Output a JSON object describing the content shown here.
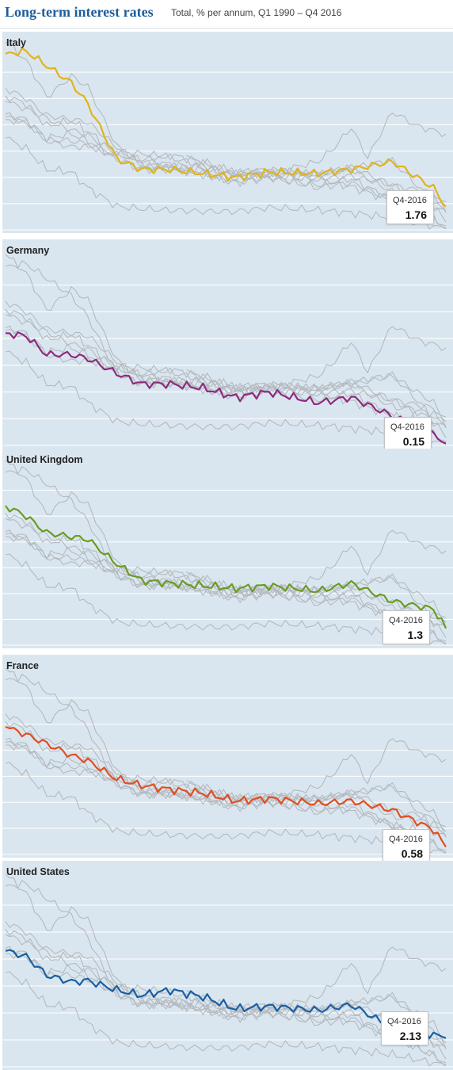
{
  "header": {
    "title": "Long-term interest rates",
    "subtitle": "Total, % per annum, Q1 1990 – Q4 2016"
  },
  "chart_data": {
    "type": "line",
    "title": "Long-term interest rates",
    "subtitle": "Total, % per annum, Q1 1990 – Q4 2016",
    "x_range": [
      "Q1-1990",
      "Q4-2016"
    ],
    "period_count": 108,
    "countries": [
      "Italy",
      "Germany",
      "United Kingdom",
      "France",
      "United States"
    ],
    "colors": {
      "Italy": "#e0b31e",
      "Germany": "#8e2a7e",
      "United Kingdom": "#6b9b24",
      "France": "#e04f22",
      "United States": "#1a5fa3",
      "context": "#b4b9bf"
    },
    "series_keypoints": {
      "Italy": [
        [
          0,
          13.4
        ],
        [
          5,
          13.6
        ],
        [
          10,
          12.5
        ],
        [
          16,
          11.2
        ],
        [
          20,
          9.6
        ],
        [
          27,
          5.4
        ],
        [
          33,
          4.6
        ],
        [
          40,
          4.6
        ],
        [
          48,
          4.3
        ],
        [
          56,
          4.0
        ],
        [
          64,
          4.4
        ],
        [
          76,
          4.3
        ],
        [
          84,
          4.6
        ],
        [
          94,
          5.2
        ],
        [
          104,
          3.2
        ],
        [
          107,
          1.76
        ]
      ],
      "Germany": [
        [
          0,
          8.4
        ],
        [
          5,
          8.2
        ],
        [
          10,
          6.8
        ],
        [
          16,
          6.8
        ],
        [
          20,
          6.5
        ],
        [
          27,
          5.4
        ],
        [
          33,
          4.6
        ],
        [
          40,
          4.6
        ],
        [
          48,
          4.3
        ],
        [
          56,
          3.6
        ],
        [
          64,
          4.0
        ],
        [
          76,
          3.2
        ],
        [
          84,
          3.6
        ],
        [
          94,
          2.2
        ],
        [
          104,
          0.9
        ],
        [
          107,
          0.15
        ]
      ],
      "United Kingdom": [
        [
          0,
          10.8
        ],
        [
          5,
          10.0
        ],
        [
          10,
          8.7
        ],
        [
          16,
          8.4
        ],
        [
          20,
          8.2
        ],
        [
          27,
          6.3
        ],
        [
          33,
          5.0
        ],
        [
          40,
          4.8
        ],
        [
          48,
          4.6
        ],
        [
          56,
          4.4
        ],
        [
          64,
          4.6
        ],
        [
          76,
          4.2
        ],
        [
          84,
          4.8
        ],
        [
          94,
          3.4
        ],
        [
          104,
          2.8
        ],
        [
          107,
          1.3
        ]
      ],
      "France": [
        [
          0,
          9.8
        ],
        [
          5,
          9.2
        ],
        [
          10,
          8.5
        ],
        [
          16,
          7.6
        ],
        [
          20,
          7.2
        ],
        [
          27,
          5.8
        ],
        [
          33,
          5.3
        ],
        [
          40,
          5.0
        ],
        [
          48,
          4.7
        ],
        [
          56,
          4.1
        ],
        [
          64,
          4.3
        ],
        [
          76,
          3.9
        ],
        [
          84,
          4.1
        ],
        [
          94,
          3.4
        ],
        [
          104,
          1.9
        ],
        [
          107,
          0.58
        ]
      ],
      "United States": [
        [
          0,
          8.6
        ],
        [
          5,
          8.2
        ],
        [
          10,
          6.8
        ],
        [
          16,
          6.3
        ],
        [
          20,
          6.4
        ],
        [
          27,
          5.7
        ],
        [
          33,
          5.3
        ],
        [
          40,
          5.7
        ],
        [
          48,
          5.2
        ],
        [
          56,
          4.3
        ],
        [
          64,
          4.5
        ],
        [
          76,
          4.2
        ],
        [
          84,
          4.6
        ],
        [
          94,
          2.9
        ],
        [
          104,
          2.4
        ],
        [
          107,
          2.13
        ]
      ]
    },
    "context_keypoints": {
      "Japan": [
        [
          0,
          7.0
        ],
        [
          5,
          6.2
        ],
        [
          10,
          4.6
        ],
        [
          16,
          4.4
        ],
        [
          20,
          3.2
        ],
        [
          27,
          1.8
        ],
        [
          33,
          1.6
        ],
        [
          40,
          1.5
        ],
        [
          48,
          1.4
        ],
        [
          56,
          1.4
        ],
        [
          64,
          1.7
        ],
        [
          76,
          1.5
        ],
        [
          84,
          1.3
        ],
        [
          94,
          0.9
        ],
        [
          104,
          0.3
        ],
        [
          107,
          0.05
        ]
      ],
      "Greece": [
        [
          0,
          null
        ],
        [
          40,
          null
        ],
        [
          44,
          5.5
        ],
        [
          56,
          4.2
        ],
        [
          64,
          4.3
        ],
        [
          76,
          5.2
        ],
        [
          80,
          6.3
        ],
        [
          84,
          7.8
        ],
        [
          88,
          5.5
        ],
        [
          94,
          9.0
        ],
        [
          100,
          7.9
        ],
        [
          107,
          7.3
        ]
      ],
      "Canada": [
        [
          0,
          10.2
        ],
        [
          5,
          9.6
        ],
        [
          10,
          7.9
        ],
        [
          16,
          8.3
        ],
        [
          20,
          7.5
        ],
        [
          27,
          5.9
        ],
        [
          33,
          5.8
        ],
        [
          40,
          5.5
        ],
        [
          48,
          4.9
        ],
        [
          56,
          4.2
        ],
        [
          64,
          4.2
        ],
        [
          76,
          3.8
        ],
        [
          84,
          3.3
        ],
        [
          94,
          2.2
        ],
        [
          104,
          1.7
        ],
        [
          107,
          1.5
        ]
      ],
      "Spain": [
        [
          0,
          14.3
        ],
        [
          5,
          12.9
        ],
        [
          10,
          10.1
        ],
        [
          16,
          11.7
        ],
        [
          20,
          10.9
        ],
        [
          27,
          6.4
        ],
        [
          33,
          4.9
        ],
        [
          40,
          4.7
        ],
        [
          48,
          4.2
        ],
        [
          56,
          3.9
        ],
        [
          64,
          4.2
        ],
        [
          76,
          4.3
        ],
        [
          84,
          4.7
        ],
        [
          94,
          5.3
        ],
        [
          104,
          2.1
        ],
        [
          107,
          1.4
        ]
      ],
      "Netherlands": [
        [
          0,
          8.8
        ],
        [
          5,
          8.4
        ],
        [
          10,
          7.0
        ],
        [
          16,
          7.3
        ],
        [
          20,
          6.8
        ],
        [
          27,
          5.5
        ],
        [
          33,
          4.7
        ],
        [
          40,
          4.9
        ],
        [
          48,
          4.2
        ],
        [
          56,
          3.6
        ],
        [
          64,
          4.0
        ],
        [
          76,
          3.4
        ],
        [
          84,
          3.9
        ],
        [
          94,
          2.3
        ],
        [
          104,
          0.8
        ],
        [
          107,
          0.3
        ]
      ]
    },
    "highlight_labels": [
      {
        "country": "Italy",
        "period": "Q4-2016",
        "value": "1.76"
      },
      {
        "country": "Germany",
        "period": "Q4-2016",
        "value": "0.15"
      },
      {
        "country": "United Kingdom",
        "period": "Q4-2016",
        "value": "1.3"
      },
      {
        "country": "France",
        "period": "Q4-2016",
        "value": "0.58"
      },
      {
        "country": "United States",
        "period": "Q4-2016",
        "value": "2.13"
      }
    ],
    "grid": true,
    "legend": "none"
  },
  "panels": [
    {
      "country": "Italy",
      "period": "Q4-2016",
      "value": "1.76"
    },
    {
      "country": "Germany",
      "period": "Q4-2016",
      "value": "0.15"
    },
    {
      "country": "United Kingdom",
      "period": "Q4-2016",
      "value": "1.3"
    },
    {
      "country": "France",
      "period": "Q4-2016",
      "value": "0.58"
    },
    {
      "country": "United States",
      "period": "Q4-2016",
      "value": "2.13"
    }
  ]
}
